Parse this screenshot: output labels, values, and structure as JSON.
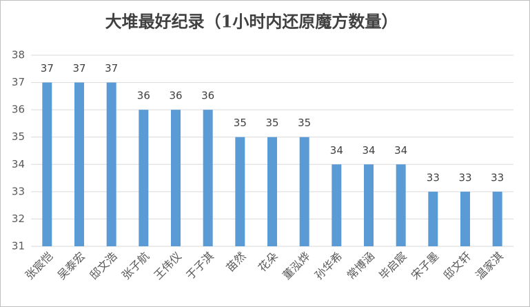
{
  "chart_data": {
    "type": "bar",
    "title": "大堆最好纪录（1小时内还原魔方数量）",
    "categories": [
      "张宸恺",
      "吴泰宏",
      "邸文浩",
      "张子航",
      "王伟仪",
      "于子淇",
      "苗然",
      "花朵",
      "董泓烨",
      "孙华希",
      "常博涵",
      "毕启宸",
      "宋子墨",
      "邸文轩",
      "温家淇"
    ],
    "values": [
      37,
      37,
      37,
      36,
      36,
      36,
      35,
      35,
      35,
      34,
      34,
      34,
      33,
      33,
      33
    ],
    "color": "#5b9bd5",
    "ylim": [
      31,
      38
    ],
    "yticks": [
      31,
      32,
      33,
      34,
      35,
      36,
      37,
      38
    ],
    "grid": true
  }
}
